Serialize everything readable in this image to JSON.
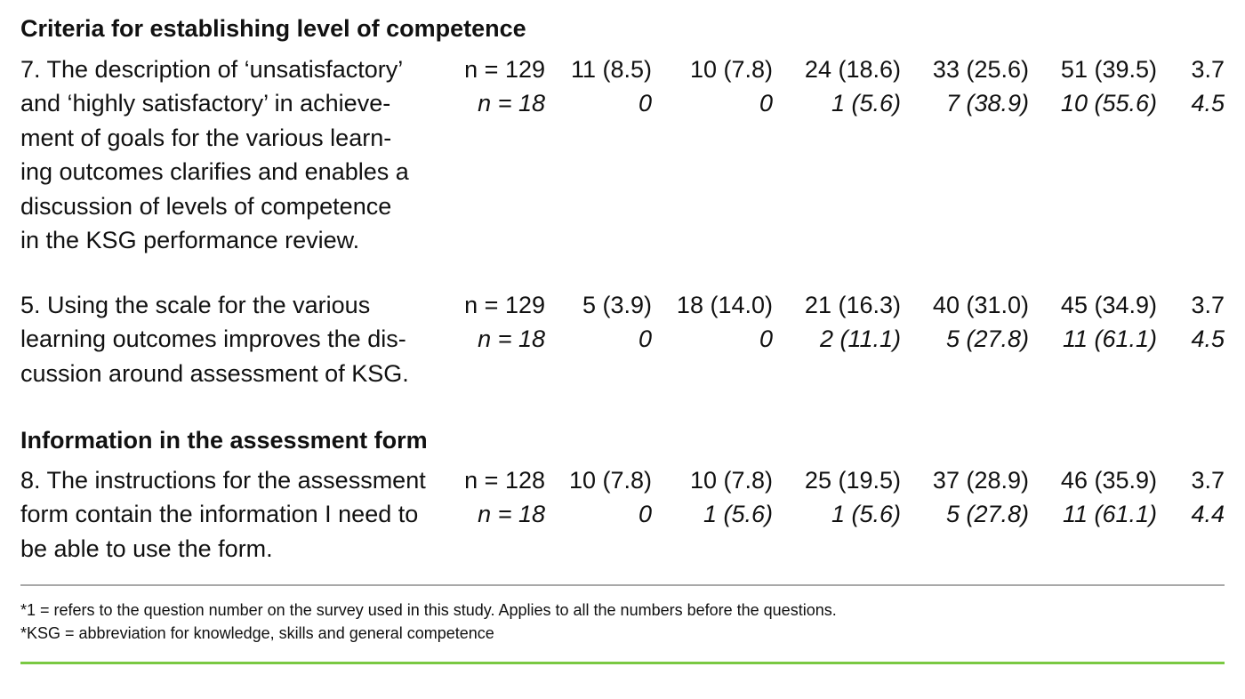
{
  "sections": [
    {
      "heading": "Criteria for establishing level of competence",
      "items": [
        {
          "question_lines": [
            "7. The description of ‘unsatisfactory’",
            "and ‘highly satisfactory’ in achieve-",
            "ment of goals for the various learn-",
            "ing outcomes clarifies and enables a",
            "discussion of levels of competence",
            "in the KSG performance review."
          ],
          "rows": [
            {
              "n": "n = 129",
              "c1": "11 (8.5)",
              "c2": "10 (7.8)",
              "c3": "24 (18.6)",
              "c4": "33 (25.6)",
              "c5": "51 (39.5)",
              "mean": "3.7"
            },
            {
              "n": "n = 18",
              "c1": "0",
              "c2": "0",
              "c3": "1 (5.6)",
              "c4": "7 (38.9)",
              "c5": "10 (55.6)",
              "mean": "4.5"
            }
          ]
        },
        {
          "question_lines": [
            "5. Using the scale for the various",
            "learning outcomes improves the dis-",
            "cussion around assessment of KSG."
          ],
          "rows": [
            {
              "n": "n = 129",
              "c1": "5 (3.9)",
              "c2": "18 (14.0)",
              "c3": "21 (16.3)",
              "c4": "40 (31.0)",
              "c5": "45 (34.9)",
              "mean": "3.7"
            },
            {
              "n": "n = 18",
              "c1": "0",
              "c2": "0",
              "c3": "2 (11.1)",
              "c4": "5 (27.8)",
              "c5": "11 (61.1)",
              "mean": "4.5"
            }
          ]
        }
      ]
    },
    {
      "heading": "Information in the assessment form",
      "items": [
        {
          "question_lines": [
            "8. The instructions for the assessment",
            "form contain the information I need to",
            "be able to use the form."
          ],
          "rows": [
            {
              "n": "n = 128",
              "c1": "10 (7.8)",
              "c2": "10 (7.8)",
              "c3": "25 (19.5)",
              "c4": "37 (28.9)",
              "c5": "46 (35.9)",
              "mean": "3.7"
            },
            {
              "n": "n = 18",
              "c1": "0",
              "c2": "1 (5.6)",
              "c3": "1 (5.6)",
              "c4": "5 (27.8)",
              "c5": "11 (61.1)",
              "mean": "4.4"
            }
          ]
        }
      ]
    }
  ],
  "footnotes": [
    "*1 = refers to the question number on the survey used in this study. Applies to all the numbers before the questions.",
    "*KSG = abbreviation for knowledge, skills and general competence"
  ],
  "colors": {
    "top_rule": "#a8a8a8",
    "bottom_rule": "#7ac943"
  }
}
